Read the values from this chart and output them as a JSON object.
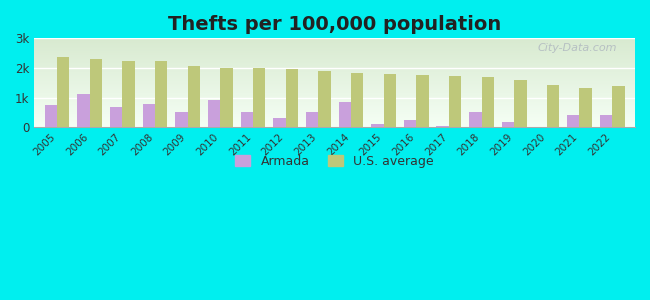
{
  "title": "Thefts per 100,000 population",
  "years": [
    2005,
    2006,
    2007,
    2008,
    2009,
    2010,
    2011,
    2012,
    2013,
    2014,
    2015,
    2016,
    2017,
    2018,
    2019,
    2020,
    2021,
    2022
  ],
  "armada": [
    750,
    1130,
    700,
    800,
    500,
    930,
    500,
    320,
    520,
    840,
    100,
    250,
    50,
    530,
    180,
    0,
    400,
    420
  ],
  "us_avg": [
    2380,
    2300,
    2230,
    2230,
    2080,
    2000,
    1990,
    1950,
    1890,
    1830,
    1790,
    1760,
    1740,
    1680,
    1580,
    1420,
    1320,
    1390
  ],
  "armada_color": "#c9a0dc",
  "us_avg_color": "#bec87a",
  "background_outer": "#00efef",
  "background_plot_top": "#d8ead0",
  "background_plot_bottom": "#f5fff5",
  "ylim": [
    0,
    3000
  ],
  "yticks": [
    0,
    1000,
    2000,
    3000
  ],
  "ytick_labels": [
    "0",
    "1k",
    "2k",
    "3k"
  ],
  "bar_width": 0.38,
  "title_fontsize": 14,
  "watermark_text": "City-Data.com"
}
